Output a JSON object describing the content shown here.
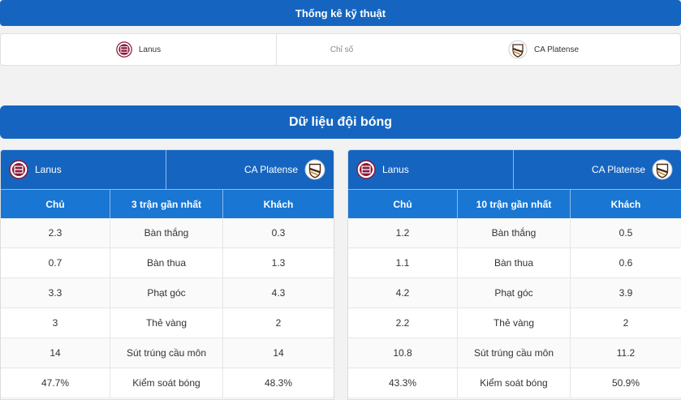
{
  "top_title": "Thống kê kỹ thuật",
  "stats_header": {
    "home": "Lanus",
    "middle": "Chỉ số",
    "away": "CA Platense"
  },
  "section_title": "Dữ liệu đội bóng",
  "left_panel": {
    "home_team": "Lanus",
    "away_team": "CA Platense",
    "headers": [
      "Chủ",
      "3 trận gần nhất",
      "Khách"
    ],
    "rows": [
      {
        "home": "2.3",
        "label": "Bàn thắng",
        "away": "0.3"
      },
      {
        "home": "0.7",
        "label": "Bàn thua",
        "away": "1.3"
      },
      {
        "home": "3.3",
        "label": "Phạt góc",
        "away": "4.3"
      },
      {
        "home": "3",
        "label": "Thẻ vàng",
        "away": "2"
      },
      {
        "home": "14",
        "label": "Sút trúng cầu môn",
        "away": "14"
      },
      {
        "home": "47.7%",
        "label": "Kiểm soát bóng",
        "away": "48.3%"
      }
    ]
  },
  "right_panel": {
    "home_team": "Lanus",
    "away_team": "CA Platense",
    "headers": [
      "Chủ",
      "10 trận gần nhất",
      "Khách"
    ],
    "rows": [
      {
        "home": "1.2",
        "label": "Bàn thắng",
        "away": "0.5"
      },
      {
        "home": "1.1",
        "label": "Bàn thua",
        "away": "0.6"
      },
      {
        "home": "4.2",
        "label": "Phạt góc",
        "away": "3.9"
      },
      {
        "home": "2.2",
        "label": "Thẻ vàng",
        "away": "2"
      },
      {
        "home": "10.8",
        "label": "Sút trúng cầu môn",
        "away": "11.2"
      },
      {
        "home": "43.3%",
        "label": "Kiểm soát bóng",
        "away": "50.9%"
      }
    ]
  },
  "colors": {
    "primary": "#1565c0",
    "header": "#1976d2",
    "lanus": "#8b1a3a",
    "platense": "#4a2a14"
  },
  "icons": {
    "home_logo": "lanus-logo-icon",
    "away_logo": "platense-logo-icon"
  }
}
